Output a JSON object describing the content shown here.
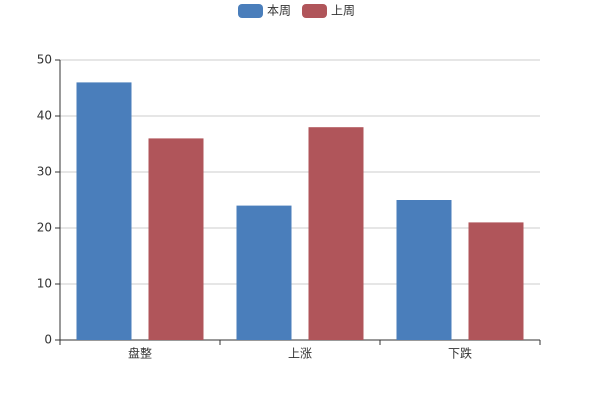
{
  "chart_data": {
    "type": "bar",
    "categories": [
      "盘整",
      "上涨",
      "下跌"
    ],
    "series": [
      {
        "name": "本周",
        "color": "#4a7ebb",
        "values": [
          46,
          24,
          25
        ]
      },
      {
        "name": "上周",
        "color": "#b0555a",
        "values": [
          36,
          38,
          21
        ]
      }
    ],
    "ylim": [
      0,
      50
    ],
    "yticks": [
      0,
      10,
      20,
      30,
      40,
      50
    ],
    "grid": true,
    "legend": "top"
  }
}
